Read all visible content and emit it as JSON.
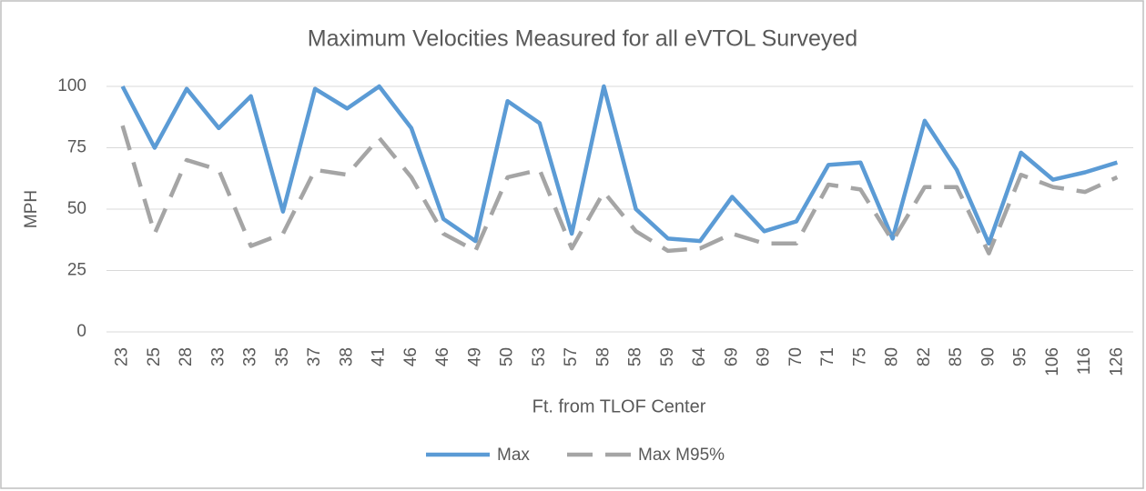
{
  "chart_data": {
    "type": "line",
    "title": "Maximum Velocities Measured for all eVTOL Surveyed",
    "x_label": "Ft. from TLOF Center",
    "y_label": "MPH",
    "categories": [
      "23",
      "25",
      "28",
      "33",
      "33",
      "35",
      "37",
      "38",
      "41",
      "46",
      "46",
      "49",
      "50",
      "53",
      "57",
      "58",
      "58",
      "59",
      "64",
      "69",
      "69",
      "70",
      "71",
      "75",
      "80",
      "82",
      "85",
      "90",
      "95",
      "106",
      "116",
      "126"
    ],
    "series": [
      {
        "name": "Max",
        "color": "#5b9bd5",
        "dashed": false,
        "values": [
          100,
          75,
          99,
          83,
          96,
          49,
          99,
          91,
          100,
          83,
          46,
          37,
          94,
          85,
          40,
          100,
          50,
          38,
          37,
          55,
          41,
          45,
          68,
          69,
          38,
          86,
          66,
          36,
          73,
          62,
          65,
          69
        ]
      },
      {
        "name": "Max M95%",
        "color": "#a5a5a5",
        "dashed": true,
        "values": [
          84,
          40,
          70,
          66,
          35,
          40,
          66,
          64,
          79,
          63,
          40,
          33,
          63,
          66,
          34,
          57,
          41,
          33,
          34,
          40,
          36,
          36,
          60,
          58,
          37,
          59,
          59,
          32,
          64,
          59,
          57,
          63
        ]
      }
    ],
    "ylim": [
      0,
      100
    ],
    "yticks": [
      0,
      25,
      50,
      75,
      100
    ],
    "grid": true,
    "legend": "bottom"
  }
}
